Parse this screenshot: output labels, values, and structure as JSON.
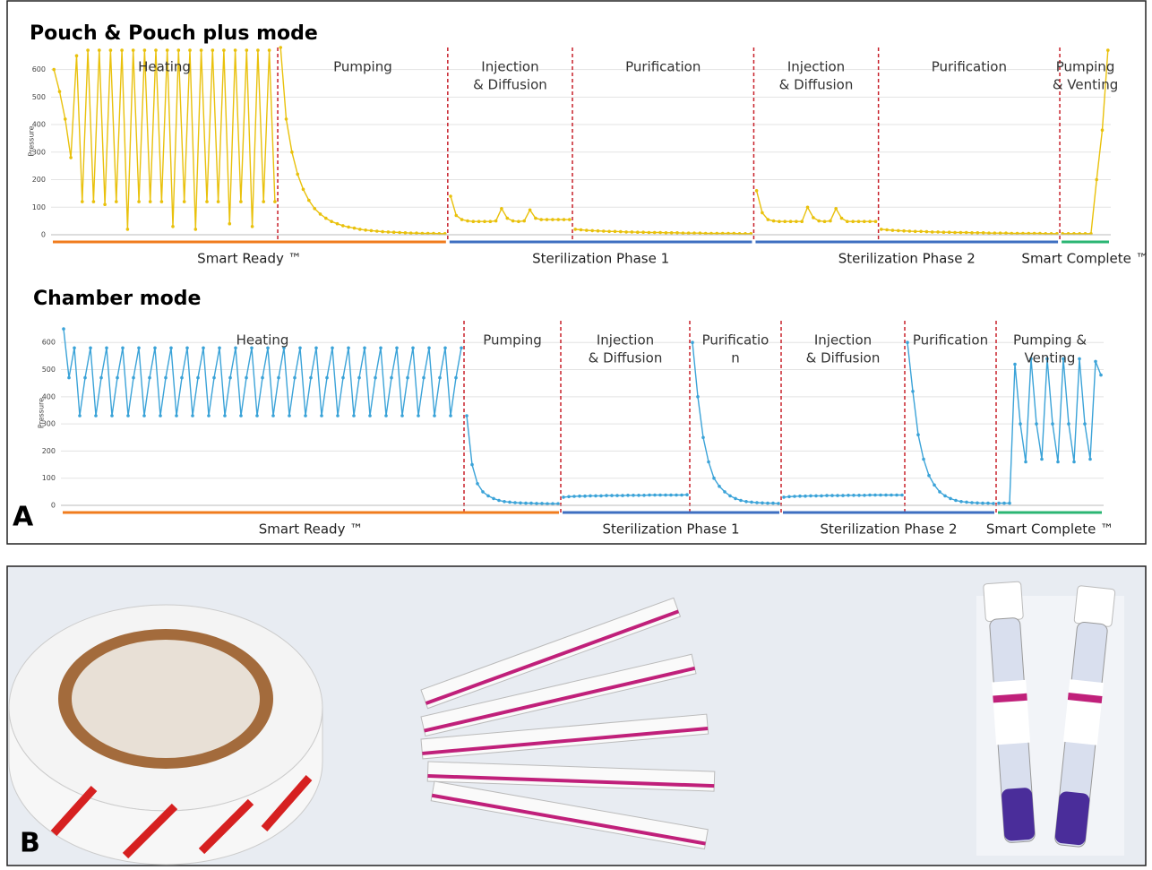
{
  "panels": {
    "a": "A",
    "b": "B"
  },
  "chart_data": [
    {
      "type": "line",
      "title": "Pouch & Pouch plus mode",
      "ylabel": "Pressure",
      "color": "#e9c10c",
      "ylim": [
        0,
        680
      ],
      "yticks": [
        0,
        100,
        200,
        300,
        400,
        500,
        600
      ],
      "grid": true,
      "stages": [
        {
          "label": "Smart Ready ™",
          "color": "#f07c1e",
          "phases": [
            {
              "label": [
                "Heating"
              ],
              "values": [
                600,
                520,
                420,
                280,
                650,
                120,
                670,
                120,
                670,
                110,
                670,
                120,
                670,
                20,
                670,
                120,
                670,
                120,
                670,
                120,
                670,
                30,
                670,
                120,
                670,
                20,
                670,
                120,
                670,
                120,
                670,
                40,
                670,
                120,
                670,
                30,
                670,
                120,
                670,
                120
              ]
            },
            {
              "label": [
                "Pumping"
              ],
              "values": [
                680,
                420,
                300,
                220,
                165,
                125,
                95,
                75,
                60,
                48,
                40,
                33,
                28,
                24,
                20,
                17,
                15,
                13,
                11,
                10,
                9,
                8,
                7,
                6,
                6,
                5,
                5,
                5,
                4,
                4
              ]
            }
          ]
        },
        {
          "label": "Sterilization Phase 1",
          "color": "#3e6fc1",
          "phases": [
            {
              "label": [
                "Injection",
                "& Diffusion"
              ],
              "values": [
                140,
                70,
                55,
                50,
                48,
                48,
                48,
                48,
                50,
                95,
                60,
                50,
                48,
                50,
                90,
                60,
                55,
                55,
                55,
                55,
                55,
                55
              ]
            },
            {
              "label": [
                "Purification"
              ],
              "values": [
                20,
                18,
                16,
                15,
                14,
                13,
                12,
                12,
                11,
                10,
                10,
                9,
                9,
                8,
                8,
                8,
                7,
                7,
                7,
                6,
                6,
                6,
                6,
                5,
                5,
                5,
                5,
                5,
                5,
                4,
                4,
                4
              ]
            }
          ]
        },
        {
          "label": "Sterilization Phase 2",
          "color": "#3e6fc1",
          "phases": [
            {
              "label": [
                "Injection",
                "& Diffusion"
              ],
              "values": [
                160,
                80,
                55,
                50,
                48,
                48,
                48,
                48,
                48,
                100,
                62,
                50,
                48,
                50,
                95,
                60,
                48,
                48,
                48,
                48,
                48,
                48
              ]
            },
            {
              "label": [
                "Purification"
              ],
              "values": [
                20,
                18,
                16,
                15,
                14,
                13,
                12,
                12,
                11,
                10,
                10,
                9,
                9,
                8,
                8,
                8,
                7,
                7,
                7,
                6,
                6,
                6,
                6,
                5,
                5,
                5,
                5,
                5,
                5,
                4,
                4,
                4
              ]
            }
          ]
        },
        {
          "label": "Smart Complete ™",
          "color": "#2bb673",
          "phases": [
            {
              "label": [
                "Pumping",
                "& Venting"
              ],
              "values": [
                4,
                4,
                4,
                4,
                4,
                4,
                200,
                380,
                670
              ]
            }
          ]
        }
      ]
    },
    {
      "type": "line",
      "title": "Chamber mode",
      "ylabel": "Pressure",
      "color": "#3ba3d8",
      "ylim": [
        0,
        680
      ],
      "yticks": [
        0,
        100,
        200,
        300,
        400,
        500,
        600
      ],
      "grid": true,
      "stages": [
        {
          "label": "Smart Ready ™",
          "color": "#f07c1e",
          "phases": [
            {
              "label": [
                "Heating"
              ],
              "values": [
                650,
                470,
                580,
                330,
                470,
                580,
                330,
                470,
                580,
                330,
                470,
                580,
                330,
                470,
                580,
                330,
                470,
                580,
                330,
                470,
                580,
                330,
                470,
                580,
                330,
                470,
                580,
                330,
                470,
                580,
                330,
                470,
                580,
                330,
                470,
                580,
                330,
                470,
                580,
                330,
                470,
                580,
                330,
                470,
                580,
                330,
                470,
                580,
                330,
                470,
                580,
                330,
                470,
                580,
                330,
                470,
                580,
                330,
                470,
                580,
                330,
                470,
                580,
                330,
                470,
                580,
                330,
                470,
                580,
                330,
                470,
                580,
                330,
                470,
                580
              ]
            },
            {
              "label": [
                "Pumping"
              ],
              "values": [
                330,
                150,
                80,
                50,
                35,
                25,
                18,
                14,
                12,
                10,
                9,
                8,
                8,
                7,
                7,
                6,
                6,
                6
              ]
            }
          ]
        },
        {
          "label": "Sterilization Phase 1",
          "color": "#3e6fc1",
          "phases": [
            {
              "label": [
                "Injection",
                "& Diffusion"
              ],
              "values": [
                30,
                32,
                33,
                34,
                34,
                35,
                35,
                35,
                36,
                36,
                36,
                36,
                37,
                37,
                37,
                37,
                38,
                38,
                38,
                38,
                38,
                38,
                38,
                39
              ]
            },
            {
              "label": [
                "Purificatio",
                "n"
              ],
              "values": [
                600,
                400,
                250,
                160,
                100,
                70,
                50,
                35,
                25,
                18,
                14,
                12,
                10,
                9,
                8,
                8,
                7
              ]
            }
          ]
        },
        {
          "label": "Sterilization Phase 2",
          "color": "#3e6fc1",
          "phases": [
            {
              "label": [
                "Injection",
                "& Diffusion"
              ],
              "values": [
                30,
                32,
                33,
                34,
                34,
                35,
                35,
                35,
                36,
                36,
                36,
                36,
                37,
                37,
                37,
                37,
                38,
                38,
                38,
                38,
                38,
                38,
                38
              ]
            },
            {
              "label": [
                "Purification"
              ],
              "values": [
                600,
                420,
                260,
                170,
                110,
                75,
                50,
                35,
                25,
                18,
                14,
                12,
                10,
                9,
                8,
                8,
                7
              ]
            }
          ]
        },
        {
          "label": "Smart Complete ™",
          "color": "#2bb673",
          "phases": [
            {
              "label": [
                "Pumping &",
                "Venting"
              ],
              "values": [
                8,
                8,
                8,
                520,
                300,
                160,
                540,
                300,
                170,
                540,
                300,
                160,
                540,
                300,
                160,
                540,
                300,
                170,
                530,
                480
              ]
            }
          ]
        }
      ]
    }
  ]
}
